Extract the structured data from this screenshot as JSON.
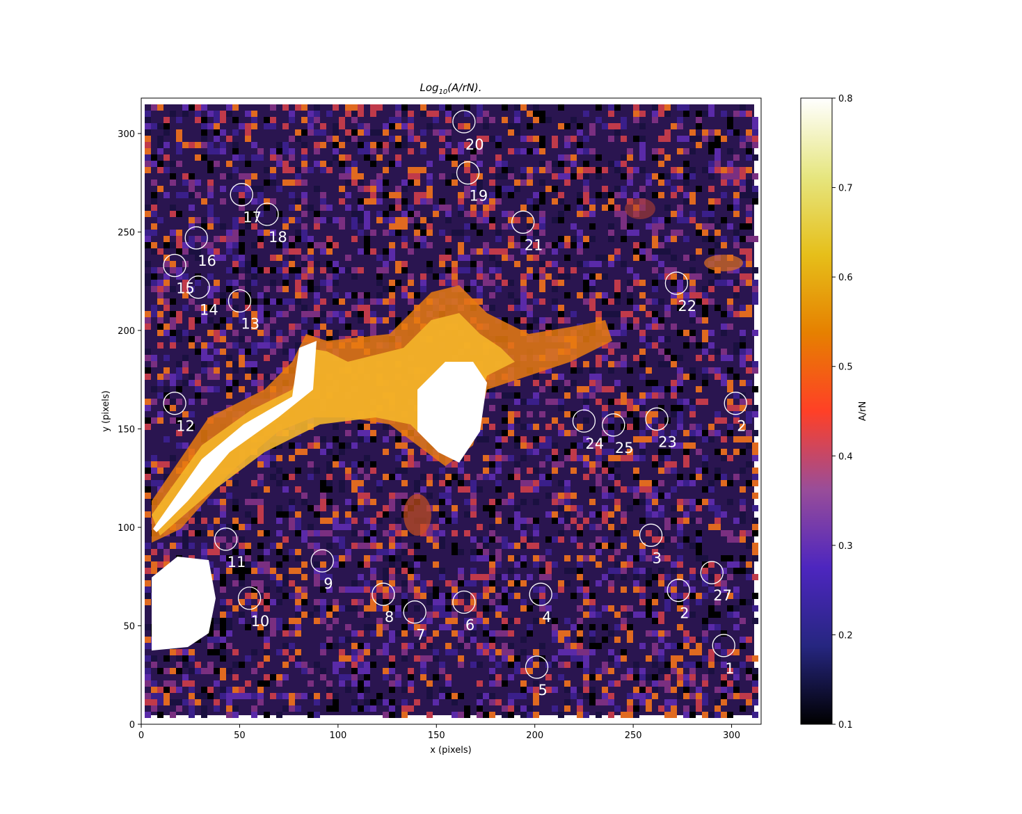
{
  "chart_data": {
    "type": "heatmap",
    "title": "Log10(A/rN).",
    "title_main": "Log",
    "title_sub": "10",
    "title_rest": "(A/rN).",
    "xlabel": "x (pixels)",
    "ylabel": "y (pixels)",
    "xlim": [
      0,
      315
    ],
    "ylim": [
      0,
      318
    ],
    "xticks": [
      0,
      50,
      100,
      150,
      200,
      250,
      300
    ],
    "yticks": [
      0,
      50,
      100,
      150,
      200,
      250,
      300
    ],
    "colormap": "CMRmap",
    "colorbar": {
      "label": "A/rN",
      "range": [
        0.1,
        0.8
      ],
      "ticks": [
        "0.1",
        "0.2",
        "0.3",
        "0.4",
        "0.5",
        "0.6",
        "0.7",
        "0.8"
      ],
      "stops": [
        "#000000",
        "#262680",
        "#4d26bf",
        "#994d99",
        "#ff4026",
        "#e68000",
        "#e6bf1a",
        "#e6e680",
        "#ffffff"
      ]
    },
    "regions": [
      {
        "label": "1",
        "x": 296,
        "y": 40
      },
      {
        "label": "2",
        "x": 273,
        "y": 68
      },
      {
        "label": "3",
        "x": 259,
        "y": 96
      },
      {
        "label": "4",
        "x": 203,
        "y": 66
      },
      {
        "label": "5",
        "x": 201,
        "y": 29
      },
      {
        "label": "6",
        "x": 164,
        "y": 62
      },
      {
        "label": "7",
        "x": 139,
        "y": 57
      },
      {
        "label": "8",
        "x": 123,
        "y": 66
      },
      {
        "label": "9",
        "x": 92,
        "y": 83
      },
      {
        "label": "10",
        "x": 55,
        "y": 64
      },
      {
        "label": "11",
        "x": 43,
        "y": 94
      },
      {
        "label": "12",
        "x": 17,
        "y": 163
      },
      {
        "label": "13",
        "x": 50,
        "y": 215
      },
      {
        "label": "14",
        "x": 29,
        "y": 222
      },
      {
        "label": "15",
        "x": 17,
        "y": 233
      },
      {
        "label": "16",
        "x": 28,
        "y": 247
      },
      {
        "label": "17",
        "x": 51,
        "y": 269
      },
      {
        "label": "18",
        "x": 64,
        "y": 259
      },
      {
        "label": "19",
        "x": 166,
        "y": 280
      },
      {
        "label": "20",
        "x": 164,
        "y": 306
      },
      {
        "label": "21",
        "x": 194,
        "y": 255
      },
      {
        "label": "22",
        "x": 272,
        "y": 224
      },
      {
        "label": "23",
        "x": 262,
        "y": 155
      },
      {
        "label": "24",
        "x": 225,
        "y": 154
      },
      {
        "label": "25",
        "x": 240,
        "y": 152
      },
      {
        "label": "2",
        "x": 302,
        "y": 163
      },
      {
        "label": "27",
        "x": 290,
        "y": 77
      }
    ]
  }
}
